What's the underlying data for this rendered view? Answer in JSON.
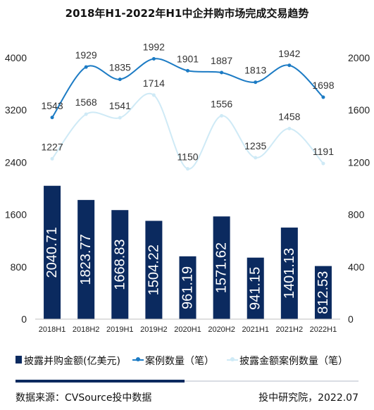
{
  "chart_data": {
    "type": "bar",
    "title": "2018年H1-2022年H1中企并购市场完成交易趋势",
    "categories": [
      "2018H1",
      "2018H2",
      "2019H1",
      "2019H2",
      "2020H1",
      "2020H2",
      "2021H1",
      "2021H2",
      "2022H1"
    ],
    "left_axis": {
      "range": [
        0,
        4000
      ],
      "ticks": [
        0,
        800,
        1600,
        2400,
        3200,
        4000
      ]
    },
    "right_axis": {
      "range": [
        0,
        2000
      ],
      "ticks": [
        0,
        400,
        800,
        1200,
        1600,
        2000
      ]
    },
    "series": [
      {
        "name": "披露并购金额(亿美元)",
        "kind": "bar",
        "axis": "left",
        "values": [
          2040.71,
          1823.77,
          1668.83,
          1504.22,
          961.19,
          1571.62,
          941.15,
          1401.13,
          812.53
        ],
        "labels": [
          "2040.71",
          "1823.77",
          "1668.83",
          "1504.22",
          "961.19",
          "1571.62",
          "941.15",
          "1401.13",
          "812.53"
        ],
        "color": "#0b2a5f"
      },
      {
        "name": "案例数量（笔）",
        "kind": "line",
        "axis": "right",
        "values": [
          1543,
          1929,
          1835,
          1992,
          1901,
          1887,
          1813,
          1942,
          1698
        ],
        "color": "#1c7bc4"
      },
      {
        "name": "披露金额案例数量（笔）",
        "kind": "line",
        "axis": "right",
        "values": [
          1227,
          1568,
          1541,
          1714,
          1150,
          1556,
          1235,
          1458,
          1191
        ],
        "color": "#cfeaf6"
      }
    ],
    "grid": false,
    "legend_position": "bottom"
  },
  "footer": {
    "source": "数据来源：CVSource投中数据",
    "credit": "投中研究院，2022.07"
  }
}
